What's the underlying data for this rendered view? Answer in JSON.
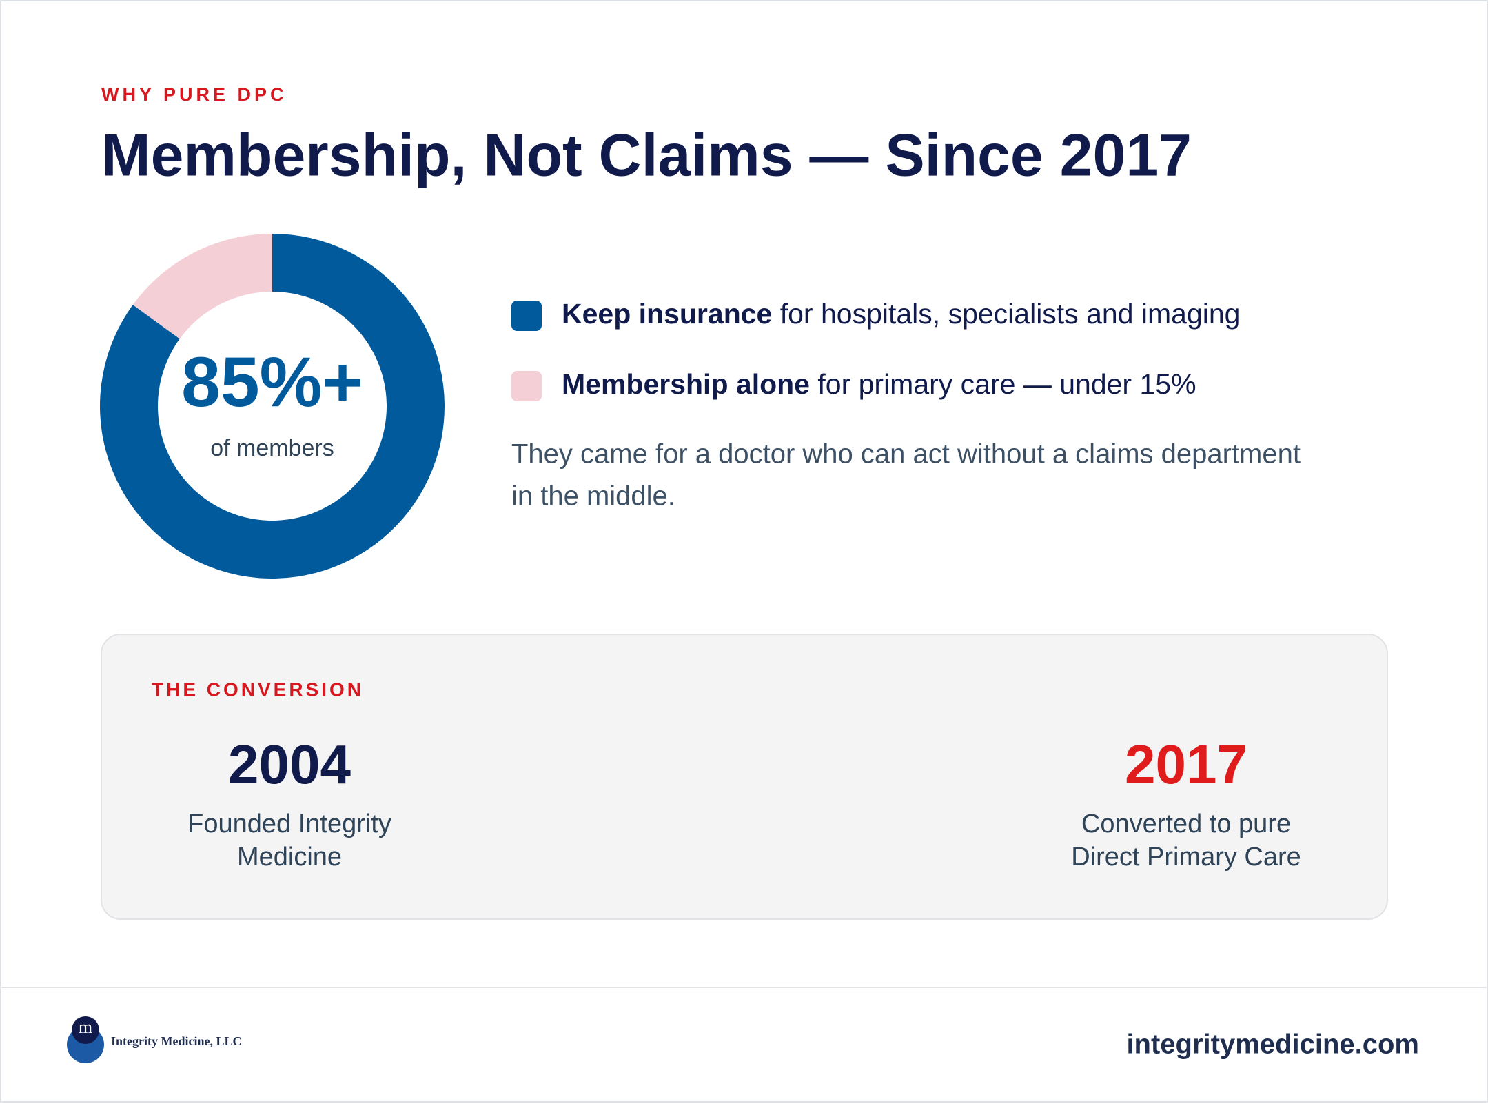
{
  "header": {
    "eyebrow": "WHY PURE DPC",
    "title": "Membership, Not Claims — Since 2017"
  },
  "donut": {
    "center_value": "85%+",
    "center_caption": "of members",
    "segments": [
      {
        "value": 85,
        "color": "#005a9c"
      },
      {
        "value": 15,
        "color": "#f4cfd6"
      }
    ]
  },
  "legend": [
    {
      "bold": "Keep insurance",
      "text": " for hospitals, specialists and imaging",
      "color": "#005a9c"
    },
    {
      "bold": "Membership alone",
      "text": " for primary care — under 15%",
      "color": "#f4cfd6"
    }
  ],
  "note": [
    "They came for a doctor who can act without a claims department",
    "in the middle."
  ],
  "conversion": {
    "label": "THE CONVERSION",
    "start": {
      "year": "2004",
      "caption": [
        "Founded Integrity",
        "Medicine"
      ]
    },
    "end": {
      "year": "2017",
      "caption": [
        "Converted to pure",
        "Direct Primary Care"
      ]
    }
  },
  "footer": {
    "logo_text": "Integrity Medicine, LLC",
    "url": "integritymedicine.com"
  }
}
